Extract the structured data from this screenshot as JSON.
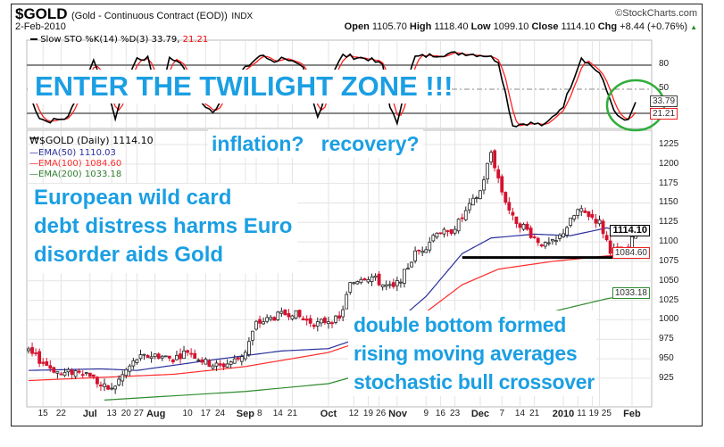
{
  "header": {
    "symbol": "$GOLD",
    "name": "(Gold - Continuous Contract (EOD))",
    "exchange": "INDX",
    "source": "©StockCharts.com",
    "date": "2-Feb-2010",
    "open_label": "Open",
    "open": "1105.70",
    "high_label": "High",
    "high": "1118.40",
    "low_label": "Low",
    "low": "1099.10",
    "close_label": "Close",
    "close": "1114.10",
    "chg_label": "Chg",
    "chg": "+8.44 (+0.76%)",
    "chg_arrow": "▲"
  },
  "annotations": {
    "twilight": "ENTER THE TWILIGHT ZONE !!!",
    "inflation": "inflation?   recovery?",
    "euro": [
      "European wild card",
      "debt distress harms Euro",
      "disorder aids Gold"
    ],
    "bottom": [
      "double bottom formed",
      "rising moving averages",
      "stochastic bull crossover"
    ]
  },
  "colors": {
    "accent": "#1b9fe3",
    "up": "#ffffff",
    "down": "#d4122f",
    "ema50": "#2a2f9c",
    "ema100": "#ff2a2a",
    "ema200": "#2e8b2e",
    "circle": "#2fae3a",
    "k": "#000000",
    "d": "#ff2020"
  },
  "chart_data": [
    {
      "type": "line",
      "title": "Slow STO %K(14) %D(3) 33.79, 21.21",
      "legend_prefix": "Slow STO %K(14) %D(3) 33.79,",
      "legend_d": "21.21",
      "ylim": [
        0,
        100
      ],
      "y_ticks": [
        {
          "v": 80,
          "label": "80"
        },
        {
          "v": 50,
          "label": "50"
        }
      ],
      "levels": [
        20,
        50,
        80
      ],
      "k_keypoints": [
        [
          0,
          45
        ],
        [
          3,
          15
        ],
        [
          5,
          10
        ],
        [
          8,
          12
        ],
        [
          11,
          15
        ],
        [
          14,
          50
        ],
        [
          18,
          86
        ],
        [
          22,
          40
        ],
        [
          24,
          15
        ],
        [
          27,
          60
        ],
        [
          30,
          88
        ],
        [
          33,
          88
        ],
        [
          36,
          40
        ],
        [
          39,
          88
        ],
        [
          42,
          85
        ],
        [
          46,
          40
        ],
        [
          51,
          20
        ],
        [
          56,
          60
        ],
        [
          64,
          92
        ],
        [
          68,
          85
        ],
        [
          71,
          90
        ],
        [
          76,
          75
        ],
        [
          80,
          15
        ],
        [
          84,
          70
        ],
        [
          87,
          92
        ],
        [
          94,
          88
        ],
        [
          98,
          80
        ],
        [
          100,
          30
        ],
        [
          102,
          5
        ],
        [
          104,
          50
        ],
        [
          107,
          90
        ],
        [
          113,
          93
        ],
        [
          120,
          95
        ],
        [
          127,
          92
        ],
        [
          130,
          85
        ],
        [
          134,
          5
        ],
        [
          138,
          8
        ],
        [
          143,
          5
        ],
        [
          148,
          30
        ],
        [
          153,
          90
        ],
        [
          158,
          70
        ],
        [
          163,
          15
        ],
        [
          166,
          10
        ],
        [
          168,
          33.79
        ]
      ],
      "last_k": "33.79",
      "last_d": "21.21"
    },
    {
      "type": "candlestick",
      "title": "$GOLD (Daily) 1114.10",
      "ylim": [
        905,
        1240
      ],
      "y_ticks": [
        "1225",
        "1200",
        "1175",
        "1150",
        "1125",
        "1100",
        "1075",
        "1050",
        "1025",
        "1000",
        "975",
        "950",
        "925"
      ],
      "x_ticks": [
        {
          "i": 4,
          "label": "15",
          "bold": false
        },
        {
          "i": 9,
          "label": "22",
          "bold": false
        },
        {
          "i": 17,
          "label": "Jul",
          "bold": true
        },
        {
          "i": 23,
          "label": "13",
          "bold": false
        },
        {
          "i": 27,
          "label": "20",
          "bold": false
        },
        {
          "i": 30,
          "label": "27",
          "bold": false
        },
        {
          "i": 35,
          "label": "Aug",
          "bold": true
        },
        {
          "i": 44,
          "label": "10",
          "bold": false
        },
        {
          "i": 49,
          "label": "17",
          "bold": false
        },
        {
          "i": 53,
          "label": "24",
          "bold": false
        },
        {
          "i": 60,
          "label": "Sep",
          "bold": true
        },
        {
          "i": 63,
          "label": "8",
          "bold": false
        },
        {
          "i": 69,
          "label": "14",
          "bold": false
        },
        {
          "i": 73,
          "label": "21",
          "bold": false
        },
        {
          "i": 83,
          "label": "Oct",
          "bold": true
        },
        {
          "i": 90,
          "label": "12",
          "bold": false
        },
        {
          "i": 94,
          "label": "19",
          "bold": false
        },
        {
          "i": 97,
          "label": "26",
          "bold": false
        },
        {
          "i": 102,
          "label": "Nov",
          "bold": true
        },
        {
          "i": 110,
          "label": "9",
          "bold": false
        },
        {
          "i": 114,
          "label": "16",
          "bold": false
        },
        {
          "i": 118,
          "label": "23",
          "bold": false
        },
        {
          "i": 125,
          "label": "Dec",
          "bold": true
        },
        {
          "i": 131,
          "label": "7",
          "bold": false
        },
        {
          "i": 136,
          "label": "14",
          "bold": false
        },
        {
          "i": 140,
          "label": "21",
          "bold": false
        },
        {
          "i": 148,
          "label": "2010",
          "bold": true
        },
        {
          "i": 152,
          "label": "11",
          "bold": false
        },
        {
          "i": 156,
          "label": "19",
          "bold": false
        },
        {
          "i": 158,
          "label": "25",
          "bold": false
        },
        {
          "i": 167,
          "label": "Feb",
          "bold": true
        }
      ],
      "close_keypoints": [
        [
          0,
          958
        ],
        [
          4,
          945
        ],
        [
          9,
          930
        ],
        [
          14,
          935
        ],
        [
          17,
          930
        ],
        [
          20,
          915
        ],
        [
          23,
          910
        ],
        [
          27,
          935
        ],
        [
          30,
          950
        ],
        [
          35,
          955
        ],
        [
          40,
          950
        ],
        [
          44,
          960
        ],
        [
          49,
          945
        ],
        [
          53,
          940
        ],
        [
          58,
          950
        ],
        [
          60,
          960
        ],
        [
          63,
          995
        ],
        [
          66,
          1000
        ],
        [
          69,
          1005
        ],
        [
          73,
          1010
        ],
        [
          76,
          1000
        ],
        [
          80,
          995
        ],
        [
          83,
          1000
        ],
        [
          86,
          1000
        ],
        [
          89,
          1045
        ],
        [
          92,
          1055
        ],
        [
          95,
          1055
        ],
        [
          98,
          1045
        ],
        [
          101,
          1040
        ],
        [
          104,
          1060
        ],
        [
          107,
          1085
        ],
        [
          110,
          1095
        ],
        [
          113,
          1115
        ],
        [
          116,
          1110
        ],
        [
          119,
          1125
        ],
        [
          122,
          1145
        ],
        [
          125,
          1165
        ],
        [
          128,
          1215
        ],
        [
          131,
          1165
        ],
        [
          134,
          1130
        ],
        [
          137,
          1120
        ],
        [
          140,
          1105
        ],
        [
          143,
          1095
        ],
        [
          146,
          1100
        ],
        [
          149,
          1120
        ],
        [
          152,
          1140
        ],
        [
          155,
          1135
        ],
        [
          158,
          1125
        ],
        [
          161,
          1090
        ],
        [
          164,
          1085
        ],
        [
          166,
          1090
        ],
        [
          168,
          1114.1
        ]
      ],
      "series": [
        {
          "name": "EMA(50)",
          "label": "EMA(50) 1110.03",
          "last": "1110.03",
          "keypoints": [
            [
              0,
              935
            ],
            [
              20,
              937
            ],
            [
              30,
              935
            ],
            [
              50,
              948
            ],
            [
              70,
              960
            ],
            [
              83,
              963
            ],
            [
              100,
              990
            ],
            [
              110,
              1030
            ],
            [
              120,
              1085
            ],
            [
              128,
              1105
            ],
            [
              140,
              1110
            ],
            [
              150,
              1108
            ],
            [
              160,
              1118
            ],
            [
              168,
              1110
            ]
          ]
        },
        {
          "name": "EMA(100)",
          "label": "EMA(100) 1084.60",
          "last": "1084.60",
          "keypoints": [
            [
              0,
              922
            ],
            [
              40,
              930
            ],
            [
              60,
              940
            ],
            [
              83,
              958
            ],
            [
              100,
              985
            ],
            [
              110,
              1010
            ],
            [
              120,
              1045
            ],
            [
              130,
              1065
            ],
            [
              145,
              1075
            ],
            [
              160,
              1082
            ],
            [
              168,
              1084.6
            ]
          ]
        },
        {
          "name": "EMA(200)",
          "label": "EMA(200) 1033.18",
          "last": "1033.18",
          "keypoints": [
            [
              21,
              897
            ],
            [
              60,
              908
            ],
            [
              83,
              918
            ],
            [
              100,
              940
            ],
            [
              120,
              965
            ],
            [
              140,
              1005
            ],
            [
              160,
              1027
            ],
            [
              168,
              1033.18
            ]
          ]
        }
      ],
      "support_line": {
        "value": 1080,
        "from_i": 120,
        "to_i": 168
      },
      "last_close": "1114.10"
    }
  ]
}
